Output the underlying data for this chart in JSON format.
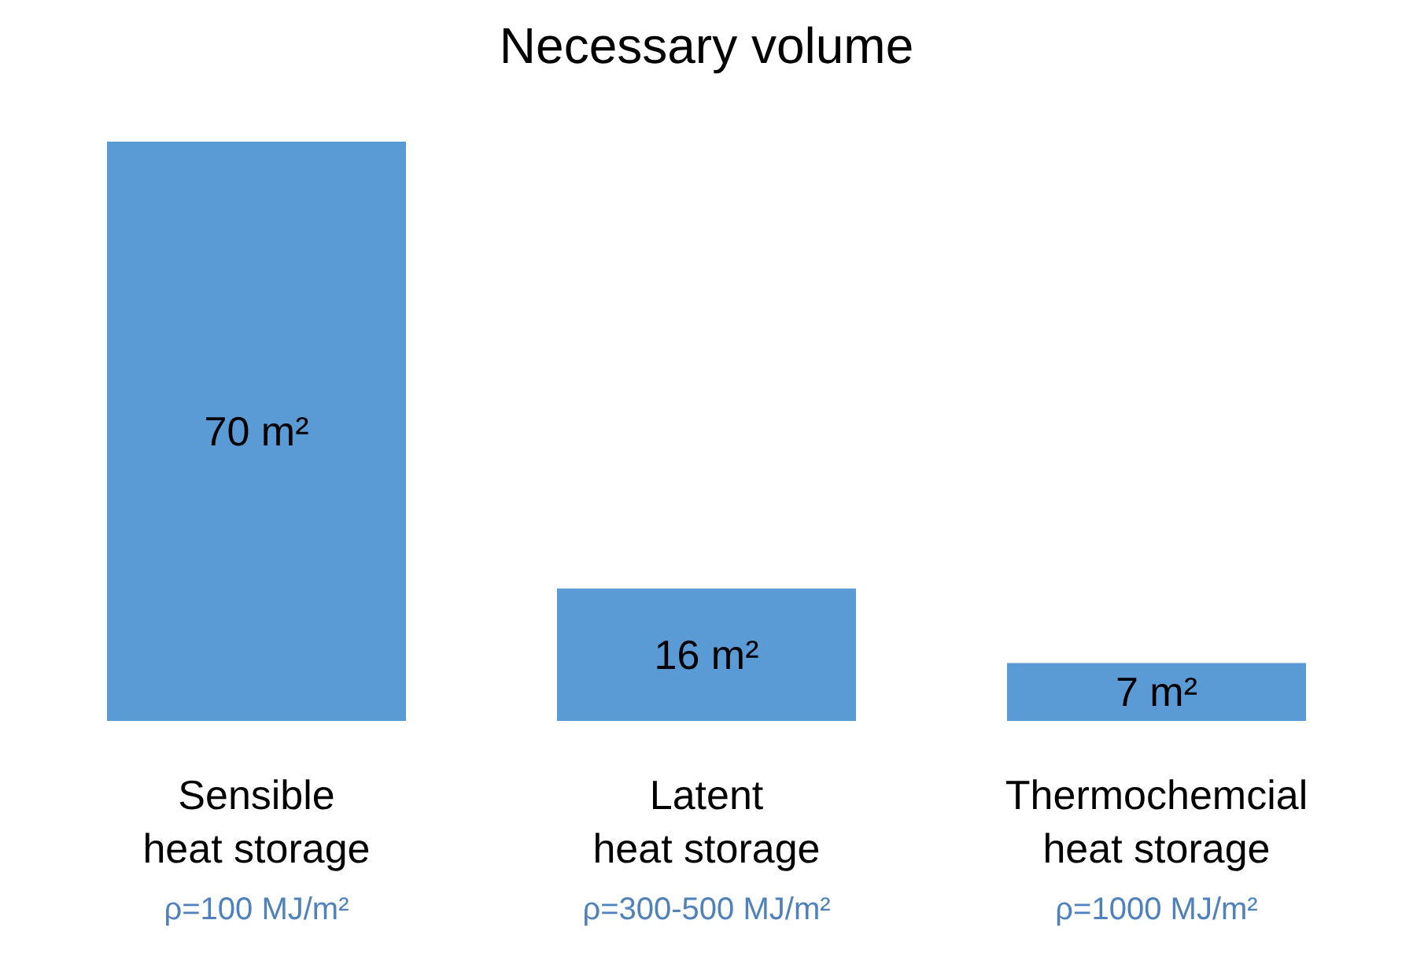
{
  "chart_data": {
    "type": "bar",
    "title": "Necessary volume",
    "categories": [
      "Sensible\nheat storage",
      "Latent\nheat storage",
      "Thermochemcial\nheat storage"
    ],
    "values": [
      70,
      16,
      7
    ],
    "color": "#5b9bd5",
    "value_labels": [
      "70 m²",
      "16 m²",
      "7 m²"
    ],
    "annotations": [
      "ρ=100 MJ/m²",
      "ρ=300-500 MJ/m²",
      "ρ=1000 MJ/m²"
    ]
  }
}
